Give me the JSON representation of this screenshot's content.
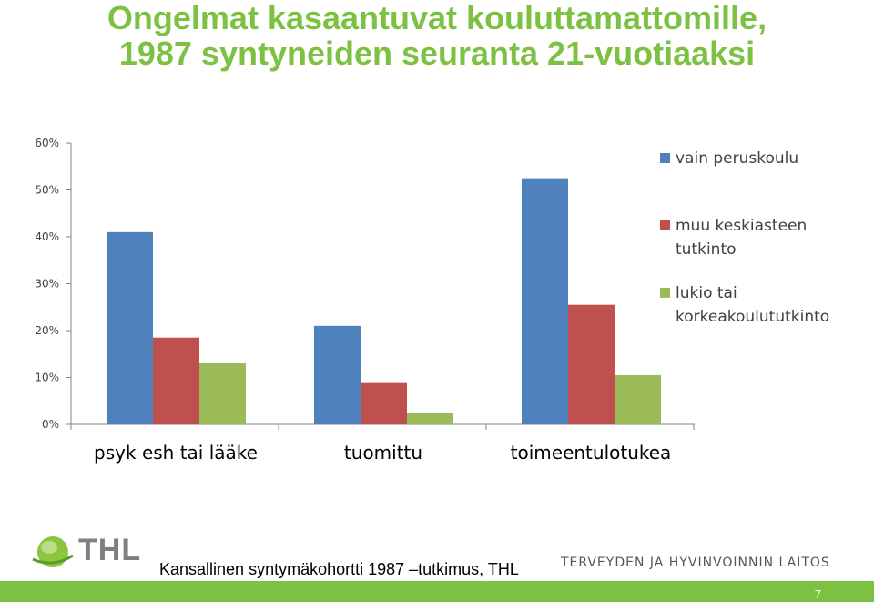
{
  "title": {
    "line1": "Ongelmat kasaantuvat kouluttamattomille,",
    "line2": "1987 syntyneiden seuranta 21-vuotiaaksi"
  },
  "colors": {
    "title_green": "#7dc142",
    "series_blue": "#4f81bd",
    "series_red": "#c0504d",
    "series_green": "#9bbb59"
  },
  "chart_data": {
    "type": "bar",
    "categories": [
      "psyk esh tai lääke",
      "tuomittu",
      "toimeentulotukea"
    ],
    "series": [
      {
        "name": "vain peruskoulu",
        "values": [
          41,
          21,
          52.5
        ],
        "color": "#4f81bd"
      },
      {
        "name": "muu keskiasteen tutkinto",
        "values": [
          18.5,
          9,
          25.5
        ],
        "color": "#c0504d"
      },
      {
        "name": "lukio tai korkeakoulututkinto",
        "values": [
          13,
          2.5,
          10.5
        ],
        "color": "#9bbb59"
      }
    ],
    "yticks": [
      "0%",
      "10%",
      "20%",
      "30%",
      "40%",
      "50%",
      "60%"
    ],
    "ylim": [
      0,
      60
    ],
    "legend_position": "right",
    "grid": false
  },
  "footer": {
    "logo_text": "THL",
    "source": "Kansallinen syntymäkohortti 1987 –tutkimus, THL",
    "organization": "TERVEYDEN JA HYVINVOINNIN LAITOS",
    "page_number": "7"
  }
}
